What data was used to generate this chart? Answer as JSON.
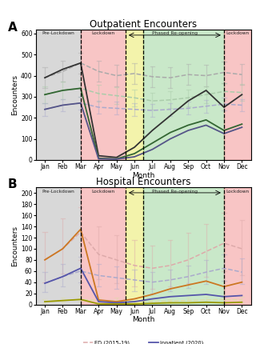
{
  "panel_A_title": "Outpatient Encounters",
  "panel_B_title": "Hospital Encounters",
  "xlabel": "Month",
  "ylabel_A": "Encounters",
  "ylabel_B": "Encounters",
  "months": [
    "Jan",
    "Feb",
    "Mar",
    "Apr",
    "May",
    "Jun",
    "Jul",
    "Aug",
    "Sep",
    "Oct",
    "Nov",
    "Dec"
  ],
  "month_x": [
    1,
    2,
    3,
    4,
    5,
    6,
    7,
    8,
    9,
    10,
    11,
    12
  ],
  "vline_positions": [
    3.0,
    5.5,
    6.5,
    11.0
  ],
  "ylim_A": [
    0,
    620
  ],
  "ylim_B": [
    0,
    210
  ],
  "yticks_A": [
    0,
    100,
    200,
    300,
    400,
    500,
    600
  ],
  "yticks_B": [
    0,
    20,
    40,
    60,
    80,
    100,
    120,
    140,
    160,
    180,
    200
  ],
  "well_2015_19": [
    390,
    420,
    460,
    420,
    400,
    410,
    395,
    390,
    405,
    400,
    415,
    405
  ],
  "well_2015_19_lo": [
    340,
    370,
    410,
    370,
    350,
    360,
    345,
    340,
    355,
    350,
    365,
    355
  ],
  "well_2015_19_hi": [
    440,
    470,
    510,
    470,
    450,
    460,
    445,
    440,
    455,
    450,
    465,
    455
  ],
  "well_2020": [
    390,
    430,
    460,
    20,
    12,
    60,
    140,
    210,
    280,
    330,
    250,
    310
  ],
  "sick_2015_19": [
    310,
    330,
    340,
    315,
    305,
    295,
    280,
    285,
    295,
    310,
    325,
    320
  ],
  "sick_2015_19_lo": [
    270,
    290,
    300,
    275,
    265,
    255,
    240,
    245,
    255,
    270,
    285,
    280
  ],
  "sick_2015_19_hi": [
    350,
    370,
    380,
    355,
    345,
    335,
    320,
    325,
    335,
    350,
    365,
    360
  ],
  "sick_2020": [
    310,
    330,
    340,
    8,
    5,
    30,
    80,
    130,
    165,
    190,
    140,
    170
  ],
  "specialty_2015_19": [
    240,
    260,
    270,
    250,
    245,
    240,
    235,
    240,
    245,
    255,
    265,
    260
  ],
  "specialty_2015_19_lo": [
    210,
    230,
    240,
    220,
    215,
    210,
    205,
    210,
    215,
    225,
    235,
    230
  ],
  "specialty_2015_19_hi": [
    270,
    290,
    300,
    280,
    275,
    270,
    265,
    270,
    275,
    285,
    295,
    290
  ],
  "specialty_2020": [
    240,
    260,
    270,
    5,
    4,
    15,
    50,
    100,
    140,
    165,
    125,
    155
  ],
  "ed_2015_19": [
    80,
    100,
    130,
    90,
    80,
    70,
    65,
    70,
    80,
    95,
    110,
    100
  ],
  "ed_2015_19_lo": [
    40,
    55,
    80,
    45,
    38,
    32,
    28,
    32,
    38,
    50,
    60,
    52
  ],
  "ed_2015_19_hi": [
    130,
    155,
    175,
    140,
    125,
    115,
    105,
    115,
    128,
    145,
    165,
    152
  ],
  "ed_2020": [
    80,
    100,
    135,
    8,
    5,
    10,
    18,
    28,
    35,
    42,
    32,
    40
  ],
  "inpatient_2015_19": [
    38,
    50,
    60,
    52,
    48,
    44,
    40,
    44,
    50,
    58,
    65,
    58
  ],
  "inpatient_2015_19_lo": [
    22,
    32,
    40,
    32,
    28,
    24,
    20,
    24,
    30,
    36,
    42,
    36
  ],
  "inpatient_2015_19_hi": [
    58,
    72,
    85,
    72,
    68,
    62,
    58,
    62,
    70,
    80,
    90,
    82
  ],
  "inpatient_2020": [
    38,
    50,
    65,
    5,
    3,
    5,
    10,
    14,
    16,
    18,
    14,
    16
  ],
  "icu_2015_19": [
    5,
    7,
    9,
    7,
    7,
    6,
    5,
    6,
    7,
    8,
    9,
    8
  ],
  "icu_2015_19_lo": [
    2,
    3,
    5,
    3,
    3,
    2,
    2,
    2,
    3,
    4,
    5,
    4
  ],
  "icu_2015_19_hi": [
    9,
    12,
    15,
    12,
    12,
    10,
    9,
    10,
    12,
    13,
    15,
    13
  ],
  "icu_2020": [
    5,
    7,
    9,
    1,
    1,
    1,
    2,
    3,
    3,
    4,
    3,
    4
  ],
  "col_well_19": "#aaaaaa",
  "col_well_20": "#333333",
  "col_sick_19": "#aaccaa",
  "col_sick_20": "#336633",
  "col_spec_19": "#aaaacc",
  "col_spec_20": "#555588",
  "col_ed_19": "#ddaaaa",
  "col_ed_20": "#cc7722",
  "col_inp_19": "#aaaacc",
  "col_inp_20": "#5555aa",
  "col_icu_19": "#ddddaa",
  "col_icu_20": "#999900",
  "pre_color": "#aaaaaa",
  "lock_color": "#f08080",
  "yellow_color": "#eeee88",
  "green_color": "#88cc88",
  "background_color": "#ffffff"
}
